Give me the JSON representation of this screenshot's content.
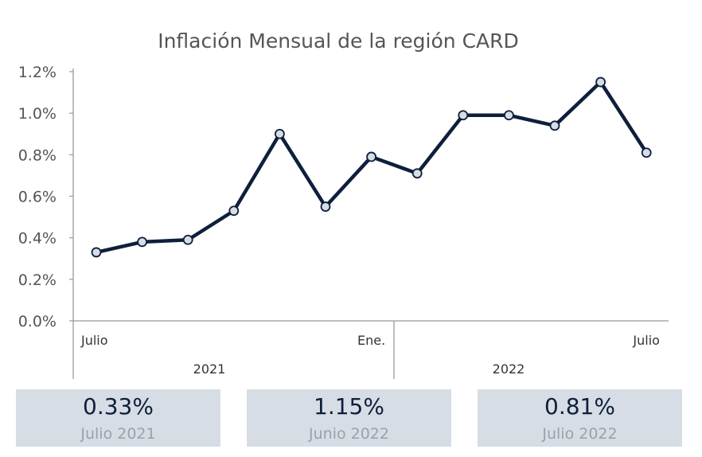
{
  "chart_data": {
    "type": "line",
    "title": "Inflación Mensual de la región CARD",
    "ylim": [
      0,
      1.2
    ],
    "y_ticks": [
      "0.0%",
      "0.2%",
      "0.4%",
      "0.6%",
      "0.8%",
      "1.0%",
      "1.2%"
    ],
    "x_tick_labels": [
      "Julio",
      "",
      "",
      "",
      "",
      "",
      "Ene.",
      "",
      "",
      "",
      "",
      "",
      "Julio"
    ],
    "x_group_labels": [
      "2021",
      "2022"
    ],
    "series": [
      {
        "values": [
          0.33,
          0.38,
          0.39,
          0.53,
          0.9,
          0.55,
          0.79,
          0.71,
          0.99,
          0.99,
          0.94,
          1.15,
          0.81
        ]
      }
    ],
    "colors": {
      "line": "#0d1f3c",
      "marker_fill": "#d7dde5",
      "axis": "#999999"
    },
    "grid": false
  },
  "cards": [
    {
      "value": "0.33%",
      "label": "Julio 2021"
    },
    {
      "value": "1.15%",
      "label": "Junio 2022"
    },
    {
      "value": "0.81%",
      "label": "Julio 2022"
    }
  ]
}
